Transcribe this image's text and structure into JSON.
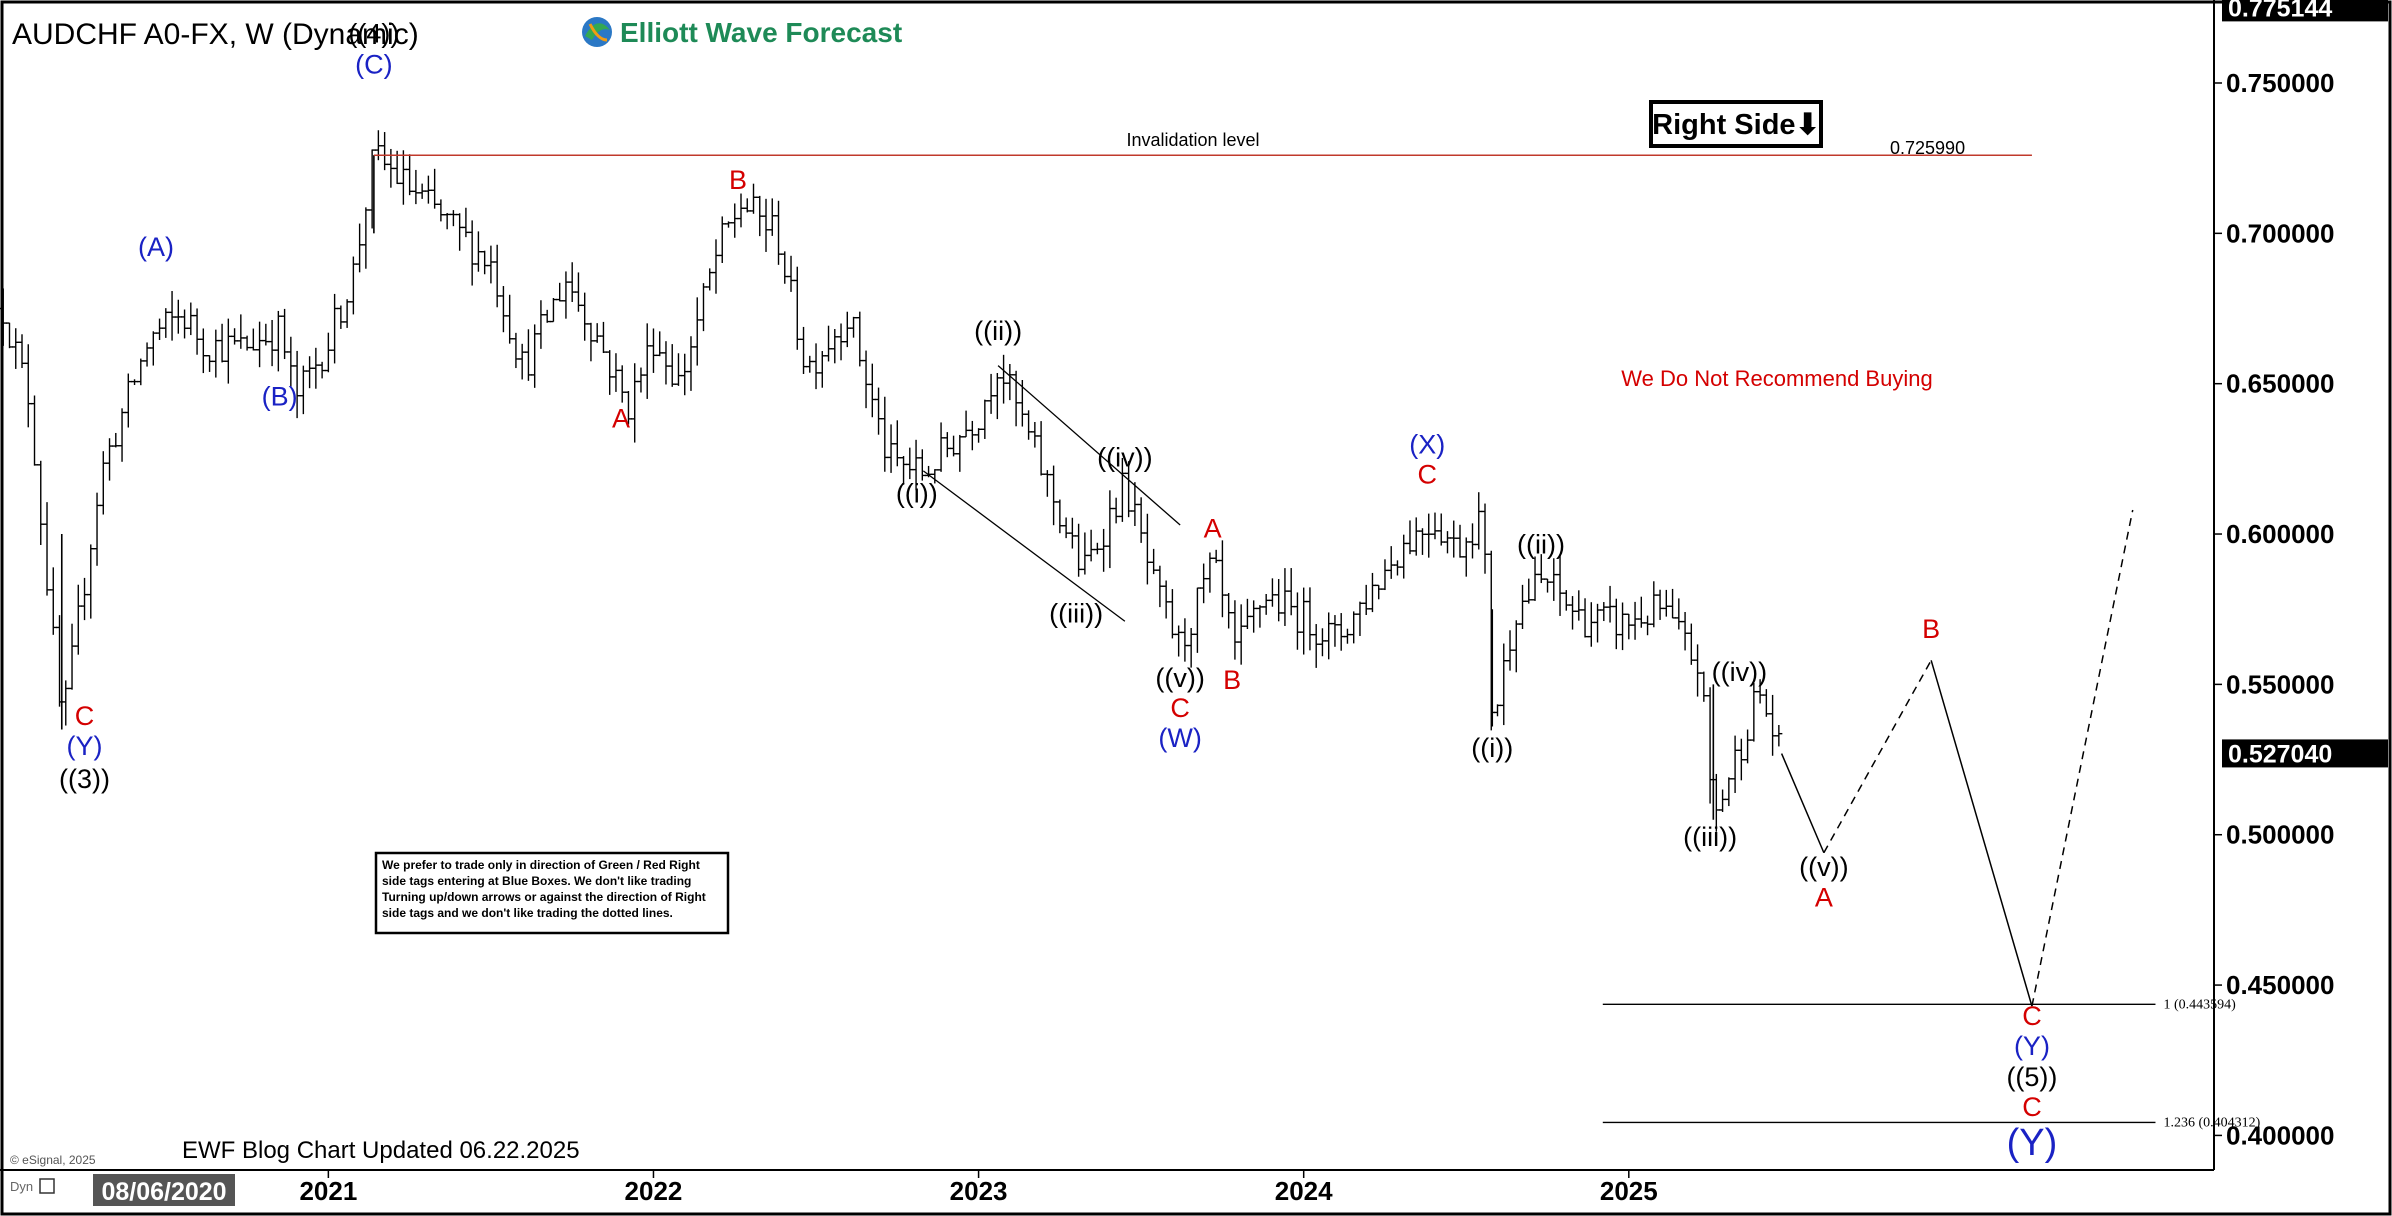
{
  "chart_data": {
    "type": "ohlc",
    "symbol_title": "AUDCHF A0-FX, W (Dynamic)",
    "brand": "Elliott Wave Forecast",
    "badge": "Right Side⬇",
    "footer_left": "EWF Blog Chart Updated 06.22.2025",
    "copyright": "© eSignal, 2025",
    "dyn_label": "Dyn",
    "date_badge": "08/06/2020",
    "invalidation": {
      "label": "Invalidation level",
      "value": "0.725990",
      "price": 0.72599
    },
    "note_red": "We Do Not Recommend Buying",
    "disclaimer_lines": [
      "We prefer to trade only in direction of Green / Red Right",
      "side tags entering at Blue Boxes. We don't like trading",
      "Turning up/down arrows or against the direction of Right",
      "side tags and we don't like trading the dotted lines."
    ],
    "ylim": [
      0.3885,
      0.7776
    ],
    "xlim": [
      2019.99,
      2026.8
    ],
    "y_ticks": [
      "0.750000",
      "0.700000",
      "0.650000",
      "0.600000",
      "0.550000",
      "0.500000",
      "0.450000",
      "0.400000"
    ],
    "y_tick_values": [
      0.75,
      0.7,
      0.65,
      0.6,
      0.55,
      0.5,
      0.45,
      0.4
    ],
    "price_badges": [
      {
        "label": "0.775144",
        "price": 0.775144
      },
      {
        "label": "0.527040",
        "price": 0.52704
      }
    ],
    "x_ticks": [
      "2021",
      "2022",
      "2023",
      "2024",
      "2025"
    ],
    "x_tick_values": [
      2021.0,
      2022.0,
      2023.0,
      2024.0,
      2025.0
    ],
    "fib_levels": [
      {
        "label": "1 (0.443594)",
        "price": 0.443594
      },
      {
        "label": "1.236 (0.404312)",
        "price": 0.404312
      }
    ],
    "price_path": [
      [
        2020.0,
        0.675
      ],
      [
        2020.08,
        0.645
      ],
      [
        2020.18,
        0.535
      ],
      [
        2020.3,
        0.62
      ],
      [
        2020.45,
        0.665
      ],
      [
        2020.55,
        0.673
      ],
      [
        2020.62,
        0.663
      ],
      [
        2020.73,
        0.662
      ],
      [
        2020.85,
        0.668
      ],
      [
        2020.9,
        0.645
      ],
      [
        2021.0,
        0.664
      ],
      [
        2021.08,
        0.688
      ],
      [
        2021.14,
        0.726
      ],
      [
        2021.3,
        0.71
      ],
      [
        2021.45,
        0.695
      ],
      [
        2021.5,
        0.69
      ],
      [
        2021.6,
        0.655
      ],
      [
        2021.73,
        0.685
      ],
      [
        2021.83,
        0.665
      ],
      [
        2021.92,
        0.642
      ],
      [
        2022.0,
        0.665
      ],
      [
        2022.08,
        0.65
      ],
      [
        2022.2,
        0.695
      ],
      [
        2022.27,
        0.71
      ],
      [
        2022.38,
        0.7
      ],
      [
        2022.47,
        0.655
      ],
      [
        2022.6,
        0.673
      ],
      [
        2022.72,
        0.625
      ],
      [
        2022.83,
        0.62
      ],
      [
        2023.0,
        0.64
      ],
      [
        2023.06,
        0.657
      ],
      [
        2023.2,
        0.62
      ],
      [
        2023.32,
        0.587
      ],
      [
        2023.45,
        0.617
      ],
      [
        2023.54,
        0.582
      ],
      [
        2023.62,
        0.562
      ],
      [
        2023.72,
        0.59
      ],
      [
        2023.79,
        0.56
      ],
      [
        2023.88,
        0.58
      ],
      [
        2024.0,
        0.572
      ],
      [
        2024.1,
        0.565
      ],
      [
        2024.2,
        0.58
      ],
      [
        2024.3,
        0.596
      ],
      [
        2024.4,
        0.605
      ],
      [
        2024.47,
        0.595
      ],
      [
        2024.55,
        0.607
      ],
      [
        2024.58,
        0.536
      ],
      [
        2024.65,
        0.575
      ],
      [
        2024.74,
        0.585
      ],
      [
        2024.85,
        0.572
      ],
      [
        2024.98,
        0.57
      ],
      [
        2025.1,
        0.575
      ],
      [
        2025.22,
        0.555
      ],
      [
        2025.26,
        0.505
      ],
      [
        2025.35,
        0.532
      ],
      [
        2025.4,
        0.548
      ],
      [
        2025.47,
        0.525
      ]
    ],
    "projection_solid": [
      [
        [
          2025.47,
          0.527
        ],
        [
          2025.6,
          0.494
        ]
      ],
      [
        [
          2025.93,
          0.558
        ],
        [
          2026.24,
          0.443
        ]
      ]
    ],
    "projection_dashed": [
      [
        [
          2025.6,
          0.494
        ],
        [
          2025.93,
          0.558
        ]
      ],
      [
        [
          2026.24,
          0.443
        ],
        [
          2026.55,
          0.608
        ]
      ]
    ],
    "channel_lines": [
      [
        [
          2023.06,
          0.656
        ],
        [
          2023.62,
          0.603
        ]
      ],
      [
        [
          2022.83,
          0.621
        ],
        [
          2023.45,
          0.571
        ]
      ]
    ],
    "labels": [
      {
        "text": "((4))",
        "x": 2021.14,
        "y": 0.7635,
        "color": "#000000",
        "size": 27
      },
      {
        "text": "(C)",
        "x": 2021.14,
        "y": 0.7532,
        "color": "#1a22c4",
        "size": 27
      },
      {
        "text": "(A)",
        "x": 2020.47,
        "y": 0.6925,
        "color": "#1a22c4",
        "size": 27
      },
      {
        "text": "(B)",
        "x": 2020.85,
        "y": 0.6428,
        "color": "#1a22c4",
        "size": 27
      },
      {
        "text": "C",
        "x": 2020.25,
        "y": 0.5365,
        "color": "#d40000",
        "size": 27
      },
      {
        "text": "(Y)",
        "x": 2020.25,
        "y": 0.5265,
        "color": "#1a22c4",
        "size": 27
      },
      {
        "text": "((3))",
        "x": 2020.25,
        "y": 0.5155,
        "color": "#000000",
        "size": 27
      },
      {
        "text": "B",
        "x": 2022.26,
        "y": 0.7148,
        "color": "#d40000",
        "size": 27
      },
      {
        "text": "A",
        "x": 2021.9,
        "y": 0.6355,
        "color": "#d40000",
        "size": 27
      },
      {
        "text": "((ii))",
        "x": 2023.06,
        "y": 0.6645,
        "color": "#000000",
        "size": 27
      },
      {
        "text": "((i))",
        "x": 2022.81,
        "y": 0.6105,
        "color": "#000000",
        "size": 27
      },
      {
        "text": "((iv))",
        "x": 2023.45,
        "y": 0.6225,
        "color": "#000000",
        "size": 27
      },
      {
        "text": "((iii))",
        "x": 2023.3,
        "y": 0.5705,
        "color": "#000000",
        "size": 27
      },
      {
        "text": "A",
        "x": 2023.72,
        "y": 0.5988,
        "color": "#d40000",
        "size": 27
      },
      {
        "text": "((v))",
        "x": 2023.62,
        "y": 0.5492,
        "color": "#000000",
        "size": 27
      },
      {
        "text": "C",
        "x": 2023.62,
        "y": 0.5392,
        "color": "#d40000",
        "size": 27
      },
      {
        "text": "(W)",
        "x": 2023.62,
        "y": 0.5292,
        "color": "#1a22c4",
        "size": 27
      },
      {
        "text": "B",
        "x": 2023.78,
        "y": 0.5485,
        "color": "#d40000",
        "size": 27
      },
      {
        "text": "(X)",
        "x": 2024.38,
        "y": 0.6268,
        "color": "#1a22c4",
        "size": 27
      },
      {
        "text": "C",
        "x": 2024.38,
        "y": 0.6168,
        "color": "#d40000",
        "size": 27
      },
      {
        "text": "((ii))",
        "x": 2024.73,
        "y": 0.5935,
        "color": "#000000",
        "size": 27
      },
      {
        "text": "((i))",
        "x": 2024.58,
        "y": 0.5258,
        "color": "#000000",
        "size": 27
      },
      {
        "text": "((iv))",
        "x": 2025.34,
        "y": 0.5512,
        "color": "#000000",
        "size": 27
      },
      {
        "text": "((iii))",
        "x": 2025.25,
        "y": 0.4962,
        "color": "#000000",
        "size": 27
      },
      {
        "text": "((v))",
        "x": 2025.6,
        "y": 0.4862,
        "color": "#000000",
        "size": 27
      },
      {
        "text": "A",
        "x": 2025.6,
        "y": 0.4762,
        "color": "#d40000",
        "size": 27
      },
      {
        "text": "B",
        "x": 2025.93,
        "y": 0.5655,
        "color": "#d40000",
        "size": 27
      },
      {
        "text": "C",
        "x": 2026.24,
        "y": 0.4368,
        "color": "#d40000",
        "size": 27
      },
      {
        "text": "(Y)",
        "x": 2026.24,
        "y": 0.4268,
        "color": "#1a22c4",
        "size": 27
      },
      {
        "text": "((5))",
        "x": 2026.24,
        "y": 0.4165,
        "color": "#000000",
        "size": 27
      },
      {
        "text": "C",
        "x": 2026.24,
        "y": 0.4065,
        "color": "#d40000",
        "size": 27
      },
      {
        "text": "(Y)",
        "x": 2026.24,
        "y": 0.3935,
        "color": "#1a22c4",
        "size": 38
      }
    ],
    "colors": {
      "bars": "#000000",
      "invalidation": "#c0392b",
      "wave_red": "#d40000",
      "wave_blue": "#1a22c4",
      "brand_green": "#1e8a57",
      "badge_bg": "#000000",
      "badge_fg": "#ffffff"
    }
  }
}
